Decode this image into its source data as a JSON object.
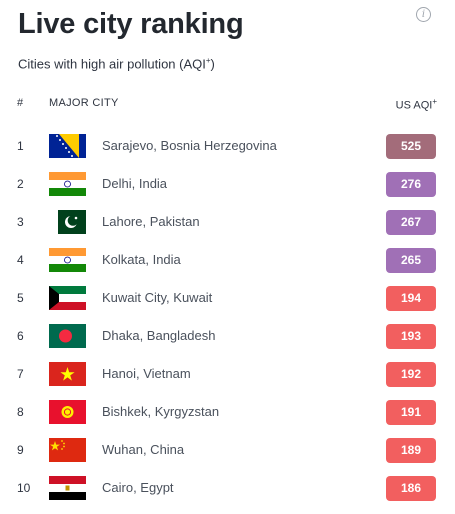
{
  "title": "Live city ranking",
  "subtitle": "Cities with high air pollution (AQI",
  "subtitle_sup": "+",
  "subtitle_end": ")",
  "header": {
    "num": "#",
    "city": "MAJOR CITY",
    "aqi": "US AQI",
    "aqi_sup": "+"
  },
  "colors": {
    "hazardous": "#a36c7a",
    "very_unhealthy": "#a070b6",
    "unhealthy": "#f25f5f"
  },
  "rows": [
    {
      "rank": "1",
      "city": "Sarajevo, Bosnia Herzegovina",
      "aqi": "525",
      "level": "hazardous",
      "flag": "bosnia-flag-icon"
    },
    {
      "rank": "2",
      "city": "Delhi, India",
      "aqi": "276",
      "level": "very_unhealthy",
      "flag": "india-flag-icon"
    },
    {
      "rank": "3",
      "city": "Lahore, Pakistan",
      "aqi": "267",
      "level": "very_unhealthy",
      "flag": "pakistan-flag-icon"
    },
    {
      "rank": "4",
      "city": "Kolkata, India",
      "aqi": "265",
      "level": "very_unhealthy",
      "flag": "india-flag-icon"
    },
    {
      "rank": "5",
      "city": "Kuwait City, Kuwait",
      "aqi": "194",
      "level": "unhealthy",
      "flag": "kuwait-flag-icon"
    },
    {
      "rank": "6",
      "city": "Dhaka, Bangladesh",
      "aqi": "193",
      "level": "unhealthy",
      "flag": "bangladesh-flag-icon"
    },
    {
      "rank": "7",
      "city": "Hanoi, Vietnam",
      "aqi": "192",
      "level": "unhealthy",
      "flag": "vietnam-flag-icon"
    },
    {
      "rank": "8",
      "city": "Bishkek, Kyrgyzstan",
      "aqi": "191",
      "level": "unhealthy",
      "flag": "kyrgyzstan-flag-icon"
    },
    {
      "rank": "9",
      "city": "Wuhan, China",
      "aqi": "189",
      "level": "unhealthy",
      "flag": "china-flag-icon"
    },
    {
      "rank": "10",
      "city": "Cairo, Egypt",
      "aqi": "186",
      "level": "unhealthy",
      "flag": "egypt-flag-icon"
    }
  ]
}
